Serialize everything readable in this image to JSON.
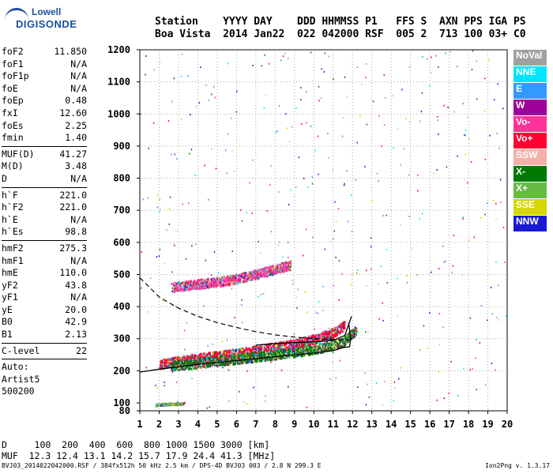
{
  "logo": {
    "line1": "Lowell",
    "line2": "DIGISONDE"
  },
  "header": {
    "row1": "Station    YYYY DAY    DDD HHMMSS P1   FFS S  AXN PPS IGA PS",
    "row2": "Boa Vista  2014 Jan22  022 042000 RSF  005 2  713 100 03+ C0"
  },
  "params": {
    "group1": [
      {
        "label": "foF2",
        "value": "11.850"
      },
      {
        "label": "foF1",
        "value": "N/A"
      },
      {
        "label": "foF1p",
        "value": "N/A"
      },
      {
        "label": "foE",
        "value": "N/A"
      },
      {
        "label": "foEp",
        "value": "0.48"
      },
      {
        "label": "fxI",
        "value": "12.60"
      },
      {
        "label": "foEs",
        "value": "2.25"
      },
      {
        "label": "fmin",
        "value": "1.40"
      }
    ],
    "group2": [
      {
        "label": "MUF(D)",
        "value": "41.27"
      },
      {
        "label": "M(D)",
        "value": "3.48"
      },
      {
        "label": "D",
        "value": "N/A"
      }
    ],
    "group3": [
      {
        "label": "h`F",
        "value": "221.0"
      },
      {
        "label": "h`F2",
        "value": "221.0"
      },
      {
        "label": "h`E",
        "value": "N/A"
      },
      {
        "label": "h`Es",
        "value": "98.8"
      }
    ],
    "group4": [
      {
        "label": "hmF2",
        "value": "275.3"
      },
      {
        "label": "hmF1",
        "value": "N/A"
      },
      {
        "label": "hmE",
        "value": "110.0"
      },
      {
        "label": "yF2",
        "value": "43.8"
      },
      {
        "label": "yF1",
        "value": "N/A"
      },
      {
        "label": "yE",
        "value": "20.0"
      },
      {
        "label": "B0",
        "value": "42.9"
      },
      {
        "label": "B1",
        "value": "2.13"
      }
    ],
    "group5": [
      {
        "label": "C-level",
        "value": "22"
      }
    ],
    "auto": [
      "Auto:",
      "Artist5",
      "500200"
    ]
  },
  "legend": [
    {
      "label": "NoVal",
      "color": "#a0a0a0"
    },
    {
      "label": "NNE",
      "color": "#00e5ff"
    },
    {
      "label": "E",
      "color": "#3399ff"
    },
    {
      "label": "W",
      "color": "#a0009a"
    },
    {
      "label": "Vo-",
      "color": "#ff3399"
    },
    {
      "label": "Vo+",
      "color": "#ff0033"
    },
    {
      "label": "SSW",
      "color": "#f4b0a8"
    },
    {
      "label": "X-",
      "color": "#007a00"
    },
    {
      "label": "X+",
      "color": "#66bb44"
    },
    {
      "label": "SSE",
      "color": "#d6d600"
    },
    {
      "label": "NNW",
      "color": "#1a1ad4"
    }
  ],
  "footer": {
    "row1": "D     100  200  400  600  800 1000 1500 3000 [km]",
    "row2": "MUF  12.3 12.4 13.1 14.2 15.7 17.9 24.4 41.3 [MHz]",
    "file": "BVJ03_2014022042000.RSF / 384fx512h 50 kHz 2.5 km / DPS-4D BVJ03 003 / 2.8 N 299.3 E",
    "version": "Ion2Png v. 1.3.17"
  },
  "chart_data": {
    "type": "scatter",
    "x_ticks": [
      "1",
      "2",
      "3",
      "4",
      "5",
      "6",
      "7",
      "8",
      "9",
      "10",
      "11",
      "12",
      "13",
      "14",
      "15",
      "16",
      "17",
      "18",
      "19",
      "20"
    ],
    "y_ticks": [
      "80",
      "100",
      "200",
      "300",
      "400",
      "500",
      "600",
      "700",
      "800",
      "900",
      "1000",
      "1100",
      "1200"
    ],
    "xlim": [
      1,
      20
    ],
    "ylim": [
      80,
      1200
    ],
    "grid": true,
    "legend_placement": "right",
    "traces": [
      {
        "name": "F2 ordinary trace",
        "color": "#ff0033",
        "x": [
          2.0,
          3.0,
          4.0,
          5.0,
          6.0,
          7.0,
          8.0,
          9.0,
          10.0,
          11.0,
          11.6
        ],
        "y": [
          222,
          232,
          240,
          248,
          256,
          265,
          275,
          285,
          300,
          320,
          345
        ]
      },
      {
        "name": "F2 extraordinary trace",
        "color": "#007a00",
        "x": [
          2.6,
          4.0,
          6.0,
          8.0,
          10.0,
          11.5,
          12.2
        ],
        "y": [
          215,
          225,
          238,
          252,
          268,
          290,
          330
        ]
      },
      {
        "name": "Multihop trace",
        "color": "#ff3399",
        "x": [
          2.6,
          4.0,
          5.0,
          6.0,
          7.0,
          8.0,
          8.8
        ],
        "y": [
          462,
          472,
          478,
          488,
          502,
          518,
          532
        ]
      },
      {
        "name": "Es trace",
        "color": "#66bb44",
        "x": [
          1.8,
          2.0,
          2.5,
          3.0,
          3.3
        ],
        "y": [
          96,
          97,
          99,
          99,
          100
        ]
      }
    ],
    "profile_solid": {
      "x": [
        1.0,
        2.0,
        4.0,
        6.0,
        8.0,
        10.0,
        11.0,
        11.5,
        11.85,
        11.9,
        11.8
      ],
      "y": [
        196,
        205,
        220,
        232,
        244,
        255,
        263,
        272,
        275,
        300,
        350
      ]
    },
    "profile_solid2": {
      "x": [
        7.0,
        8.0,
        9.0,
        10.0,
        11.0,
        11.6,
        11.95
      ],
      "y": [
        280,
        285,
        288,
        290,
        295,
        310,
        370
      ]
    },
    "profile_dashed": {
      "x": [
        1.0,
        2.0,
        3.0,
        4.0,
        5.0,
        6.0,
        7.0,
        8.0,
        9.0,
        10.0,
        11.0,
        11.85
      ],
      "y": [
        490,
        430,
        395,
        370,
        350,
        335,
        322,
        312,
        305,
        300,
        297,
        296
      ]
    }
  }
}
